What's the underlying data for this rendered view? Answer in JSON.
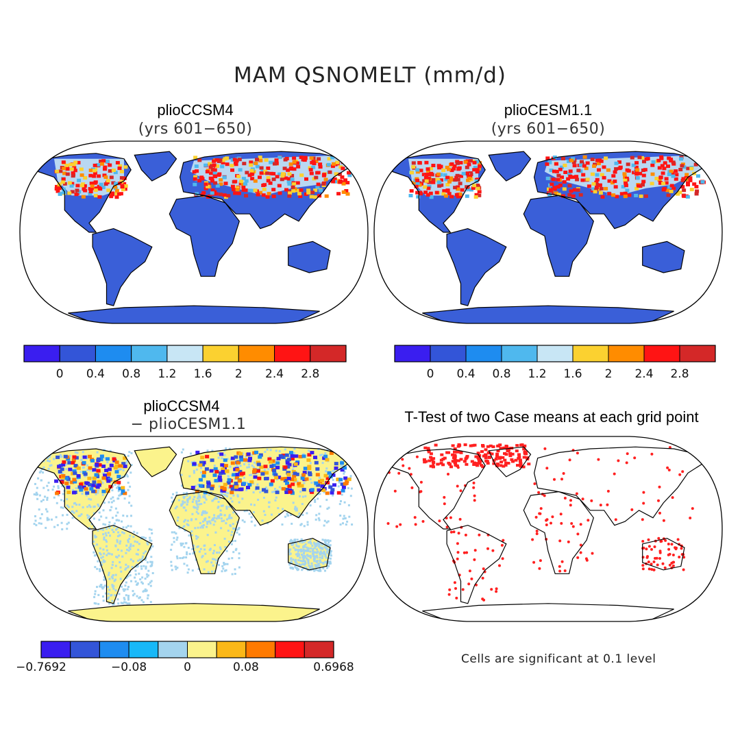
{
  "title": "MAM QSNOMELT (mm/d)",
  "panels": [
    {
      "title": "plioCCSM4",
      "subtitle": "(yrs 601−650)"
    },
    {
      "title": "plioCESM1.1",
      "subtitle": "(yrs 601−650)"
    },
    {
      "title": "plioCCSM4",
      "subtitle": "− plioCESM1.1"
    },
    {
      "title": "T-Test of two Case means at each grid point",
      "subtitle": ""
    }
  ],
  "colorbar_abs": {
    "colors": [
      "#3a1ef0",
      "#3355d8",
      "#1e8cf0",
      "#4fb8ee",
      "#c8e6f5",
      "#fbd130",
      "#ff8c00",
      "#ff1414",
      "#d42828"
    ],
    "tick_labels": [
      "0",
      "0.4",
      "0.8",
      "1.2",
      "1.6",
      "2",
      "2.4",
      "2.8"
    ]
  },
  "colorbar_diff": {
    "colors": [
      "#3a1ef0",
      "#3355d8",
      "#1e8cf0",
      "#18b8f8",
      "#a4d4ee",
      "#fbf38c",
      "#fbb818",
      "#ff7a00",
      "#ff1414",
      "#d42828"
    ],
    "tick_labels": [
      "−0.7692",
      "−0.08",
      "0",
      "0.08",
      "0.6968"
    ]
  },
  "significance_note": "Cells are significant at 0.1 level",
  "colors": {
    "land_base": "#3a5fd8",
    "diff_land": "#fbf38c",
    "diff_speckle": "#a4d4ee",
    "significant": "#ff2020"
  }
}
